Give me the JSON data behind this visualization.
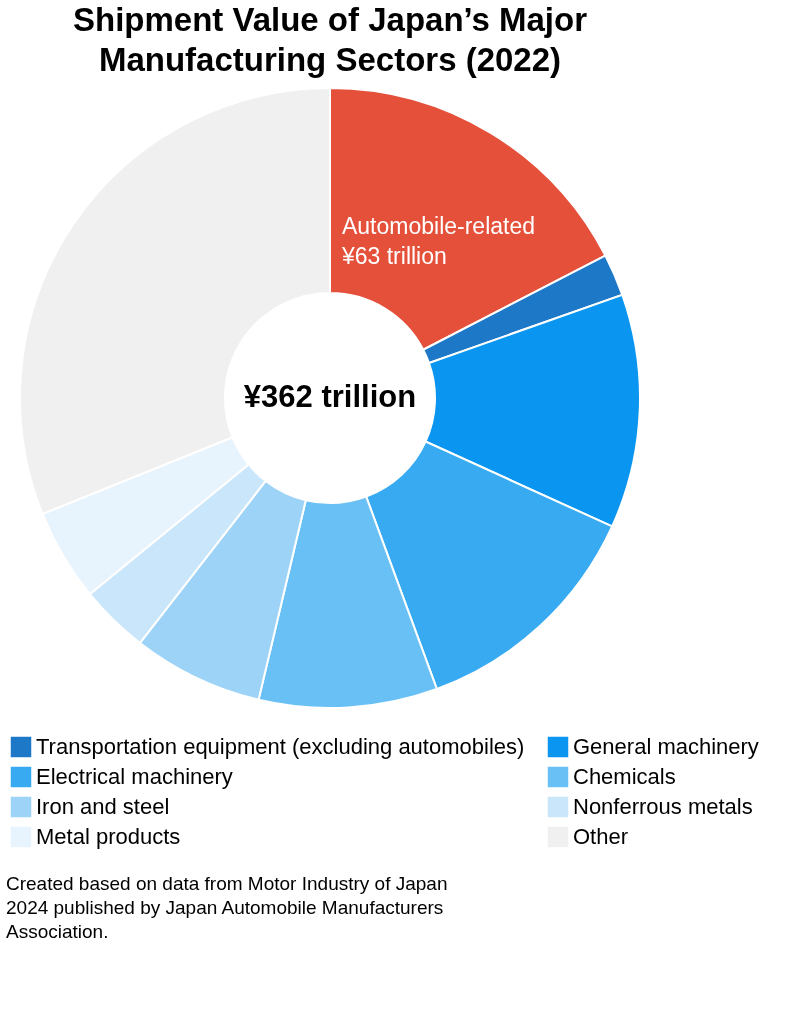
{
  "chart_data": {
    "type": "donut",
    "title": "Shipment Value of Japan’s Major Manufacturing Sectors (2022)",
    "categories": [
      "Automobile-related",
      "Transportation equipment (excluding automobiles)",
      "General machinery",
      "Electrical machinery",
      "Chemicals",
      "Iron and steel",
      "Nonferrous metals",
      "Metal products",
      "Other"
    ],
    "values": [
      17.4,
      2.2,
      12.2,
      12.6,
      9.3,
      6.8,
      3.6,
      4.8,
      31.1
    ],
    "colors": [
      "#e4503a",
      "#1e78c8",
      "#0a96f0",
      "#37aaf2",
      "#69c0f5",
      "#9cd3f7",
      "#c9e6fa",
      "#e8f4fd",
      "#f0f0f0"
    ],
    "legend": "bottom",
    "annotations": [
      {
        "text": "¥63 trillion",
        "x": "Automobile-related"
      },
      "¥362 trillion",
      "Created based on data from Motor Industry of Japan 2024 published by Japan Automobile Manufacturers Association."
    ]
  }
}
